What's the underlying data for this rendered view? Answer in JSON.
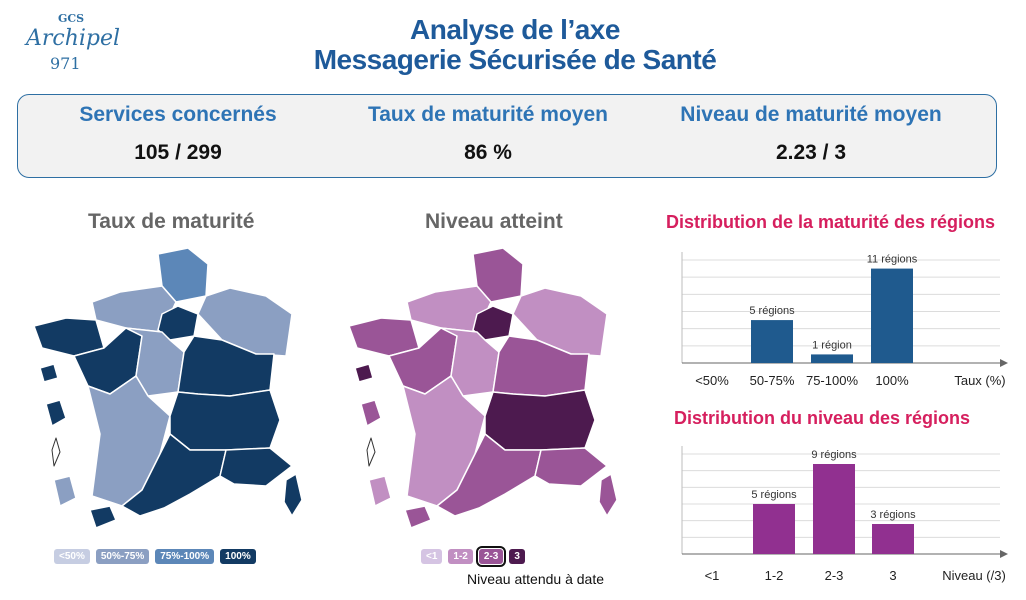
{
  "logo": {
    "top": "GCS",
    "name": "Archipel",
    "num": "971"
  },
  "title_line1": "Analyse de l’axe",
  "title_line2": "Messagerie Sécurisée de Santé",
  "kpis": [
    {
      "label": "Services concernés",
      "value": "105 / 299"
    },
    {
      "label": "Taux de maturité moyen",
      "value": "86 %"
    },
    {
      "label": "Niveau de maturité moyen",
      "value": "2.23 / 3"
    }
  ],
  "map1": {
    "title": "Taux de maturité",
    "legend": [
      {
        "label": "<50%",
        "color": "#c6cde2"
      },
      {
        "label": "50%-75%",
        "color": "#8b9fc2"
      },
      {
        "label": "75%-100%",
        "color": "#5c87b8"
      },
      {
        "label": "100%",
        "color": "#123a63"
      }
    ]
  },
  "map2": {
    "title": "Niveau atteint",
    "legend": [
      {
        "label": "<1",
        "color": "#d5c4e3"
      },
      {
        "label": "1-2",
        "color": "#c18fc2"
      },
      {
        "label": "2-3",
        "color": "#9a5597"
      },
      {
        "label": "3",
        "color": "#4d1a4f"
      }
    ],
    "note": "Niveau attendu à date"
  },
  "chart_data": [
    {
      "type": "bar",
      "title": "Distribution de la maturité des régions",
      "categories": [
        "<50%",
        "50-75%",
        "75-100%",
        "100%"
      ],
      "values": [
        0,
        5,
        1,
        11
      ],
      "data_labels": [
        "",
        "5 régions",
        "1 région",
        "11 régions"
      ],
      "xlabel": "Taux (%)",
      "ylim": [
        0,
        12
      ],
      "grid": true,
      "color": "#1f5a8e"
    },
    {
      "type": "bar",
      "title": "Distribution du niveau des régions",
      "categories": [
        "<1",
        "1-2",
        "2-3",
        "3"
      ],
      "values": [
        0,
        5,
        9,
        3
      ],
      "data_labels": [
        "",
        "5 régions",
        "9 régions",
        "3 régions"
      ],
      "xlabel": "Niveau (/3)",
      "ylim": [
        0,
        10
      ],
      "grid": true,
      "color": "#913090"
    }
  ]
}
